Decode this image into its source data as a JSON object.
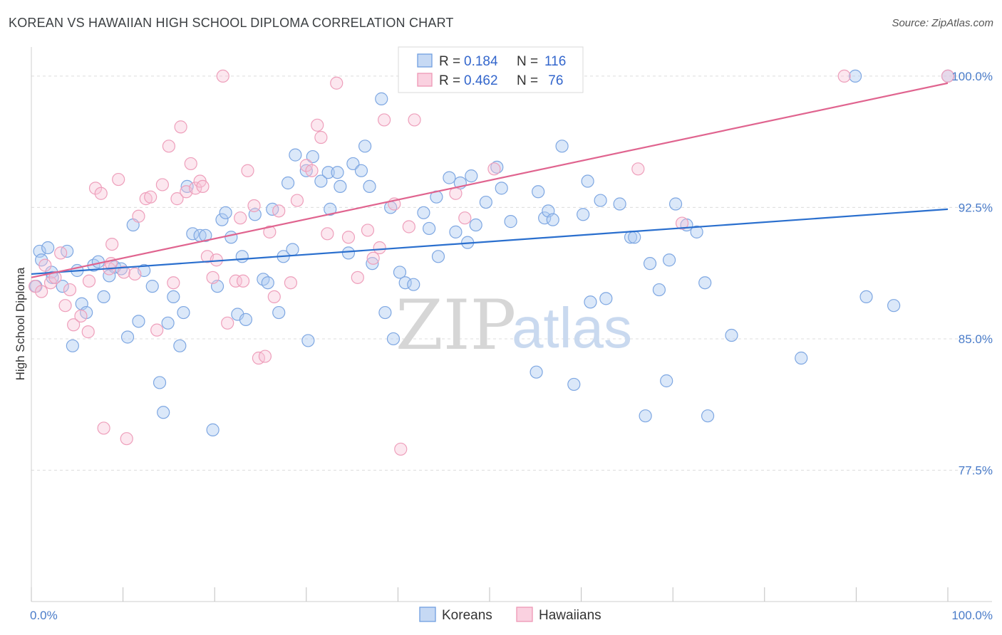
{
  "header": {
    "title": "KOREAN VS HAWAIIAN HIGH SCHOOL DIPLOMA CORRELATION CHART",
    "source": "Source: ZipAtlas.com"
  },
  "watermark": {
    "zip": "ZIP",
    "atlas": "atlas"
  },
  "legend": {
    "rows": [
      {
        "r_label": "R = ",
        "r_value": "0.184",
        "n_label": "N = ",
        "n_value": "116"
      },
      {
        "r_label": "R = ",
        "r_value": "0.462",
        "n_label": "N = ",
        "n_value": " 76"
      }
    ]
  },
  "chart_data": {
    "type": "scatter",
    "title": "KOREAN VS HAWAIIAN HIGH SCHOOL DIPLOMA CORRELATION CHART",
    "xlabel": "",
    "ylabel": "High School Diploma",
    "xlim": [
      0,
      100
    ],
    "ylim": [
      70,
      101.5
    ],
    "y_ticks": [
      77.5,
      85.0,
      92.5,
      100.0
    ],
    "y_tick_labels": [
      "77.5%",
      "85.0%",
      "92.5%",
      "100.0%"
    ],
    "x_tick_labels": [
      "0.0%",
      "100.0%"
    ],
    "grid": true,
    "legend_position": "top-center",
    "colors": {
      "koreans": "#6f9fe0",
      "hawaiians": "#ef97b5",
      "koreans_line": "#2a6fce",
      "hawaiians_line": "#e0648f"
    },
    "series": [
      {
        "name": "Koreans",
        "r": 0.184,
        "n": 116,
        "trend": {
          "x": [
            0,
            100
          ],
          "y": [
            88.7,
            92.4
          ]
        },
        "points": [
          [
            0.9,
            90.0
          ],
          [
            1.1,
            89.5
          ],
          [
            1.8,
            90.2
          ],
          [
            2.2,
            88.8
          ],
          [
            3.4,
            88.0
          ],
          [
            3.9,
            90.0
          ],
          [
            4.5,
            84.6
          ],
          [
            5.0,
            88.9
          ],
          [
            5.5,
            87.0
          ],
          [
            6.0,
            86.5
          ],
          [
            6.8,
            89.2
          ],
          [
            7.3,
            89.4
          ],
          [
            7.9,
            87.4
          ],
          [
            8.5,
            88.6
          ],
          [
            9.1,
            89.1
          ],
          [
            9.8,
            89.0
          ],
          [
            10.5,
            85.1
          ],
          [
            11.1,
            91.5
          ],
          [
            11.7,
            86.0
          ],
          [
            12.3,
            88.9
          ],
          [
            13.2,
            88.0
          ],
          [
            14.0,
            82.5
          ],
          [
            14.4,
            80.8
          ],
          [
            14.9,
            85.9
          ],
          [
            15.5,
            87.4
          ],
          [
            16.2,
            84.6
          ],
          [
            16.6,
            86.5
          ],
          [
            17.0,
            93.7
          ],
          [
            17.6,
            91.0
          ],
          [
            18.4,
            90.9
          ],
          [
            19.0,
            90.9
          ],
          [
            19.8,
            79.8
          ],
          [
            20.3,
            88.0
          ],
          [
            20.8,
            91.8
          ],
          [
            21.2,
            92.2
          ],
          [
            21.8,
            90.8
          ],
          [
            22.5,
            86.4
          ],
          [
            23.0,
            89.7
          ],
          [
            23.4,
            86.1
          ],
          [
            24.4,
            92.1
          ],
          [
            25.3,
            88.4
          ],
          [
            25.8,
            88.2
          ],
          [
            26.3,
            92.4
          ],
          [
            27.0,
            86.5
          ],
          [
            27.5,
            89.7
          ],
          [
            28.0,
            93.9
          ],
          [
            28.5,
            90.1
          ],
          [
            28.8,
            95.5
          ],
          [
            30.0,
            94.6
          ],
          [
            30.2,
            84.9
          ],
          [
            30.7,
            95.4
          ],
          [
            31.6,
            94.0
          ],
          [
            32.4,
            94.5
          ],
          [
            32.6,
            92.4
          ],
          [
            33.4,
            94.5
          ],
          [
            33.7,
            93.7
          ],
          [
            34.6,
            89.9
          ],
          [
            35.1,
            95.0
          ],
          [
            36.0,
            94.6
          ],
          [
            36.4,
            96.0
          ],
          [
            36.9,
            93.7
          ],
          [
            37.2,
            89.3
          ],
          [
            38.2,
            98.7
          ],
          [
            38.6,
            86.5
          ],
          [
            39.2,
            92.5
          ],
          [
            39.5,
            85.0
          ],
          [
            40.2,
            88.8
          ],
          [
            40.8,
            88.2
          ],
          [
            41.7,
            88.1
          ],
          [
            42.8,
            92.2
          ],
          [
            43.4,
            91.3
          ],
          [
            44.4,
            89.7
          ],
          [
            44.2,
            93.1
          ],
          [
            45.6,
            94.2
          ],
          [
            46.3,
            91.1
          ],
          [
            46.8,
            93.9
          ],
          [
            47.6,
            90.5
          ],
          [
            48.0,
            94.3
          ],
          [
            48.5,
            91.5
          ],
          [
            49.6,
            92.8
          ],
          [
            50.8,
            94.8
          ],
          [
            51.3,
            93.6
          ],
          [
            52.3,
            91.7
          ],
          [
            55.1,
            83.1
          ],
          [
            55.3,
            93.4
          ],
          [
            56.0,
            91.9
          ],
          [
            56.4,
            92.3
          ],
          [
            56.9,
            91.8
          ],
          [
            57.9,
            96.0
          ],
          [
            59.2,
            82.4
          ],
          [
            60.2,
            92.1
          ],
          [
            60.7,
            94.0
          ],
          [
            61.0,
            87.1
          ],
          [
            62.1,
            92.9
          ],
          [
            62.7,
            87.3
          ],
          [
            64.2,
            92.7
          ],
          [
            65.4,
            90.8
          ],
          [
            65.8,
            90.8
          ],
          [
            67.0,
            80.6
          ],
          [
            67.5,
            89.3
          ],
          [
            68.5,
            87.8
          ],
          [
            69.3,
            82.6
          ],
          [
            69.6,
            89.5
          ],
          [
            70.3,
            92.7
          ],
          [
            71.5,
            91.5
          ],
          [
            72.6,
            91.1
          ],
          [
            73.5,
            88.2
          ],
          [
            73.8,
            80.6
          ],
          [
            76.4,
            85.2
          ],
          [
            84.0,
            83.9
          ],
          [
            91.1,
            87.4
          ],
          [
            94.1,
            86.9
          ],
          [
            89.9,
            100.0
          ],
          [
            100.0,
            100.0
          ],
          [
            0.5,
            88.0
          ],
          [
            2.3,
            88.5
          ]
        ]
      },
      {
        "name": "Hawaiians",
        "r": 0.462,
        "n": 76,
        "trend": {
          "x": [
            0,
            100
          ],
          "y": [
            88.5,
            99.6
          ]
        },
        "points": [
          [
            0.4,
            88.0
          ],
          [
            1.1,
            87.7
          ],
          [
            1.5,
            89.2
          ],
          [
            2.1,
            88.2
          ],
          [
            2.6,
            88.5
          ],
          [
            3.2,
            89.9
          ],
          [
            3.7,
            86.9
          ],
          [
            4.2,
            87.8
          ],
          [
            4.6,
            85.8
          ],
          [
            5.4,
            86.3
          ],
          [
            6.2,
            85.4
          ],
          [
            6.3,
            88.3
          ],
          [
            7.0,
            93.6
          ],
          [
            7.6,
            93.3
          ],
          [
            7.9,
            79.9
          ],
          [
            8.5,
            89.0
          ],
          [
            8.7,
            89.3
          ],
          [
            8.8,
            90.4
          ],
          [
            9.5,
            94.1
          ],
          [
            10.1,
            88.8
          ],
          [
            10.4,
            79.3
          ],
          [
            11.3,
            88.7
          ],
          [
            11.7,
            92.0
          ],
          [
            12.5,
            93.0
          ],
          [
            13.0,
            93.1
          ],
          [
            13.7,
            85.5
          ],
          [
            14.3,
            93.8
          ],
          [
            15.0,
            96.0
          ],
          [
            15.5,
            88.2
          ],
          [
            15.9,
            93.0
          ],
          [
            16.3,
            97.1
          ],
          [
            16.9,
            93.4
          ],
          [
            17.4,
            95.0
          ],
          [
            17.9,
            93.6
          ],
          [
            18.4,
            94.0
          ],
          [
            18.7,
            93.7
          ],
          [
            19.2,
            89.7
          ],
          [
            19.8,
            88.5
          ],
          [
            20.2,
            89.5
          ],
          [
            20.9,
            100.0
          ],
          [
            21.4,
            85.9
          ],
          [
            22.3,
            88.3
          ],
          [
            22.8,
            91.9
          ],
          [
            23.1,
            88.3
          ],
          [
            23.6,
            94.6
          ],
          [
            24.3,
            92.6
          ],
          [
            24.8,
            83.9
          ],
          [
            25.5,
            84.0
          ],
          [
            26.0,
            91.1
          ],
          [
            26.5,
            87.4
          ],
          [
            27.0,
            92.3
          ],
          [
            28.3,
            88.2
          ],
          [
            29.0,
            92.9
          ],
          [
            30.0,
            94.9
          ],
          [
            30.6,
            94.6
          ],
          [
            31.2,
            97.2
          ],
          [
            31.6,
            96.5
          ],
          [
            32.3,
            91.0
          ],
          [
            33.3,
            99.6
          ],
          [
            34.6,
            90.8
          ],
          [
            35.6,
            88.5
          ],
          [
            36.7,
            91.2
          ],
          [
            37.3,
            89.6
          ],
          [
            38.0,
            90.2
          ],
          [
            38.5,
            97.5
          ],
          [
            39.6,
            92.7
          ],
          [
            40.3,
            78.7
          ],
          [
            41.2,
            91.4
          ],
          [
            41.8,
            97.5
          ],
          [
            46.3,
            93.3
          ],
          [
            47.3,
            91.9
          ],
          [
            50.5,
            94.7
          ],
          [
            66.2,
            94.7
          ],
          [
            71.0,
            91.6
          ],
          [
            88.7,
            100.0
          ],
          [
            100.0,
            100.0
          ]
        ]
      }
    ]
  }
}
